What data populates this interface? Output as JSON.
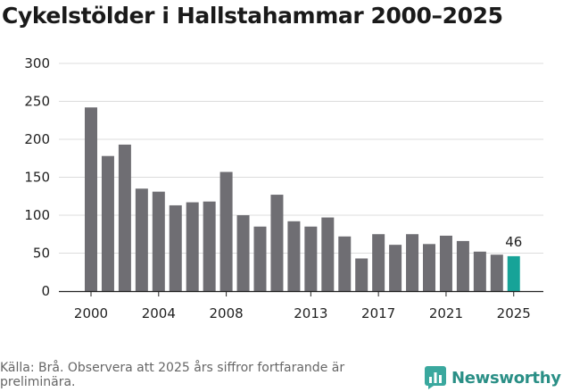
{
  "chart_data": {
    "type": "bar",
    "title": "Cykelstölder i Hallstahammar 2000–2025",
    "xlabel": "",
    "ylabel": "",
    "ylim": [
      0,
      300
    ],
    "yticks": [
      "0",
      "50",
      "100",
      "150",
      "200",
      "250",
      "300"
    ],
    "xticks": [
      "2000",
      "2004",
      "2008",
      "2013",
      "2017",
      "2021",
      "2025"
    ],
    "categories": [
      "2000",
      "2001",
      "2002",
      "2003",
      "2004",
      "2005",
      "2006",
      "2007",
      "2008",
      "2009",
      "2010",
      "2011",
      "2012",
      "2013",
      "2014",
      "2015",
      "2016",
      "2017",
      "2018",
      "2019",
      "2020",
      "2021",
      "2022",
      "2023",
      "2024",
      "2025"
    ],
    "values": [
      242,
      178,
      193,
      135,
      131,
      113,
      117,
      118,
      157,
      100,
      85,
      127,
      92,
      85,
      97,
      72,
      43,
      75,
      61,
      75,
      62,
      73,
      66,
      52,
      48,
      46
    ],
    "highlight_index": 25,
    "highlight_label": "46",
    "colors": {
      "bar": "#6f6e73",
      "highlight": "#17a398",
      "grid": "#dcdcdc",
      "axis": "#222222"
    }
  },
  "source": "Källa: Brå. Observera att 2025 års siffror fortfarande är preliminära.",
  "brand": {
    "name": "Newsworthy",
    "icon": "newsworthy-logo-icon",
    "color": "#2a8f86"
  }
}
